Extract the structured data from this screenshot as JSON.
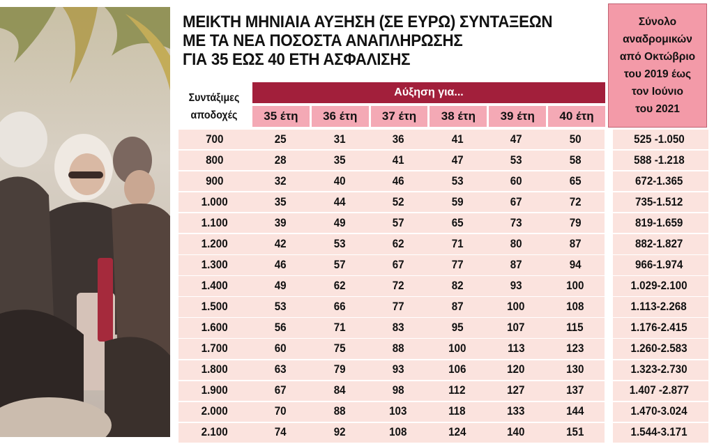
{
  "title": {
    "lines": [
      "ΜΕΙΚΤΗ ΜΗΝΙΑΙΑ ΑΥΞΗΣΗ (ΣΕ ΕΥΡΩ) ΣΥΝΤΑΞΕΩΝ",
      "ΜΕ ΤΑ ΝΕΑ ΠΟΣΟΣΤΑ ΑΝΑΠΛΗΡΩΣΗΣ",
      "ΓΙΑ 35 ΕΩΣ 40 ΕΤΗ ΑΣΦΑΛΙΣΗΣ"
    ]
  },
  "header": {
    "row_label": "Συντάξιμες\nαποδοχές",
    "group_label": "Αύξηση για...",
    "years": [
      "35 έτη",
      "36 έτη",
      "37 έτη",
      "38 έτη",
      "39 έτη",
      "40 έτη"
    ],
    "total_label": "Σύνολο\nαναδρομικών\nαπό Οκτώβριο\nτου 2019 έως\nτον Ιούνιο\nτου 2021"
  },
  "rows": [
    {
      "earnings": "700",
      "values": [
        "25",
        "31",
        "36",
        "41",
        "47",
        "50"
      ],
      "total": "525 -1.050"
    },
    {
      "earnings": "800",
      "values": [
        "28",
        "35",
        "41",
        "47",
        "53",
        "58"
      ],
      "total": "588 -1.218"
    },
    {
      "earnings": "900",
      "values": [
        "32",
        "40",
        "46",
        "53",
        "60",
        "65"
      ],
      "total": "672-1.365"
    },
    {
      "earnings": "1.000",
      "values": [
        "35",
        "44",
        "52",
        "59",
        "67",
        "72"
      ],
      "total": "735-1.512"
    },
    {
      "earnings": "1.100",
      "values": [
        "39",
        "49",
        "57",
        "65",
        "73",
        "79"
      ],
      "total": "819-1.659"
    },
    {
      "earnings": "1.200",
      "values": [
        "42",
        "53",
        "62",
        "71",
        "80",
        "87"
      ],
      "total": "882-1.827"
    },
    {
      "earnings": "1.300",
      "values": [
        "46",
        "57",
        "67",
        "77",
        "87",
        "94"
      ],
      "total": "966-1.974"
    },
    {
      "earnings": "1.400",
      "values": [
        "49",
        "62",
        "72",
        "82",
        "93",
        "100"
      ],
      "total": "1.029-2.100"
    },
    {
      "earnings": "1.500",
      "values": [
        "53",
        "66",
        "77",
        "87",
        "100",
        "108"
      ],
      "total": "1.113-2.268"
    },
    {
      "earnings": "1.600",
      "values": [
        "56",
        "71",
        "83",
        "95",
        "107",
        "115"
      ],
      "total": "1.176-2.415"
    },
    {
      "earnings": "1.700",
      "values": [
        "60",
        "75",
        "88",
        "100",
        "113",
        "123"
      ],
      "total": "1.260-2.583"
    },
    {
      "earnings": "1.800",
      "values": [
        "63",
        "79",
        "93",
        "106",
        "120",
        "130"
      ],
      "total": "1.323-2.730"
    },
    {
      "earnings": "1.900",
      "values": [
        "67",
        "84",
        "98",
        "112",
        "127",
        "137"
      ],
      "total": "1.407 -2.877"
    },
    {
      "earnings": "2.000",
      "values": [
        "70",
        "88",
        "103",
        "118",
        "133",
        "144"
      ],
      "total": "1.470-3.024"
    },
    {
      "earnings": "2.100",
      "values": [
        "74",
        "92",
        "108",
        "124",
        "140",
        "151"
      ],
      "total": "1.544-3.171"
    }
  ],
  "colors": {
    "group_bar": "#a21f3b",
    "year_header": "#f4a9b5",
    "total_header": "#f39aa8",
    "row_bg": "#fbe3de"
  }
}
